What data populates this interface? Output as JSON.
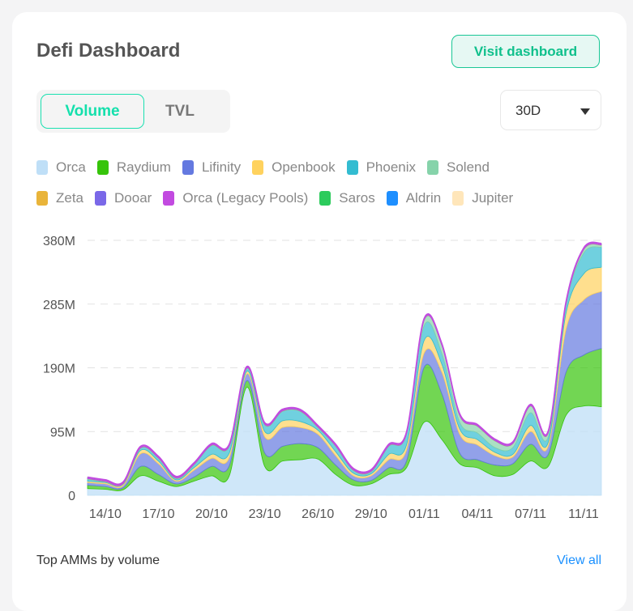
{
  "header": {
    "title": "Defi Dashboard",
    "visit_label": "Visit dashboard"
  },
  "toggle": {
    "options": [
      "Volume",
      "TVL"
    ],
    "selected": "Volume"
  },
  "range_select": {
    "value": "30D"
  },
  "legend": [
    {
      "label": "Orca",
      "color": "#bfdff7"
    },
    {
      "label": "Raydium",
      "color": "#36c40a"
    },
    {
      "label": "Lifinity",
      "color": "#6479e0"
    },
    {
      "label": "Openbook",
      "color": "#ffd25e"
    },
    {
      "label": "Phoenix",
      "color": "#33bcd1"
    },
    {
      "label": "Solend",
      "color": "#86d3aa"
    },
    {
      "label": "Zeta",
      "color": "#e9b43a"
    },
    {
      "label": "Dooar",
      "color": "#7a68e8"
    },
    {
      "label": "Orca (Legacy Pools)",
      "color": "#c24ae0"
    },
    {
      "label": "Saros",
      "color": "#2ccb5c"
    },
    {
      "label": "Aldrin",
      "color": "#1e8fff"
    },
    {
      "label": "Jupiter",
      "color": "#ffe6ba"
    }
  ],
  "chart_data": {
    "type": "area",
    "stacked": true,
    "grid": "horizontal-dashed",
    "ylim": [
      0,
      380
    ],
    "yunit": "M",
    "yticks": [
      "0",
      "95M",
      "190M",
      "285M",
      "380M"
    ],
    "x": [
      "13/10",
      "14/10",
      "15/10",
      "16/10",
      "17/10",
      "18/10",
      "19/10",
      "20/10",
      "21/10",
      "22/10",
      "23/10",
      "24/10",
      "25/10",
      "26/10",
      "27/10",
      "28/10",
      "29/10",
      "30/10",
      "31/10",
      "01/11",
      "02/11",
      "03/11",
      "04/11",
      "05/11",
      "06/11",
      "07/11",
      "08/11",
      "09/11",
      "10/11",
      "11/11"
    ],
    "xticks": [
      "14/10",
      "17/10",
      "20/10",
      "23/10",
      "26/10",
      "29/10",
      "01/11",
      "04/11",
      "07/11",
      "11/11"
    ],
    "series": [
      {
        "name": "Orca",
        "values": [
          10,
          9,
          8,
          29,
          21,
          13,
          21,
          29,
          29,
          161,
          43,
          51,
          53,
          54,
          31,
          15,
          17,
          31,
          41,
          109,
          83,
          47,
          41,
          29,
          31,
          51,
          43,
          119,
          133,
          132
        ]
      },
      {
        "name": "Raydium",
        "values": [
          5,
          4,
          3,
          14,
          10,
          4,
          6,
          14,
          15,
          10,
          20,
          22,
          24,
          17,
          14,
          8,
          5,
          10,
          10,
          82,
          68,
          16,
          12,
          16,
          16,
          25,
          18,
          64,
          76,
          87
        ]
      },
      {
        "name": "Lifinity",
        "values": [
          4,
          4,
          3,
          19,
          16,
          4,
          10,
          12,
          12,
          10,
          24,
          28,
          24,
          20,
          14,
          6,
          7,
          12,
          16,
          21,
          32,
          28,
          22,
          14,
          10,
          19,
          12,
          64,
          82,
          85
        ]
      },
      {
        "name": "Openbook",
        "values": [
          2,
          2,
          2,
          5,
          4,
          2,
          4,
          6,
          7,
          4,
          8,
          10,
          9,
          6,
          6,
          4,
          3,
          8,
          8,
          19,
          12,
          8,
          8,
          5,
          4,
          9,
          6,
          24,
          39,
          36
        ]
      },
      {
        "name": "Phoenix",
        "values": [
          3,
          1,
          0.5,
          3,
          4,
          2,
          4,
          13,
          10,
          4,
          10,
          14,
          15,
          4,
          8,
          4,
          3,
          12,
          16,
          22,
          16,
          10,
          10,
          7,
          10,
          19,
          8,
          12,
          31,
          30
        ]
      },
      {
        "name": "Solend",
        "values": [
          0.5,
          0.5,
          0.5,
          0.5,
          0.5,
          0.5,
          0.5,
          0.5,
          0.5,
          0.5,
          0.5,
          0.5,
          0.5,
          0.5,
          0.5,
          0.5,
          0.5,
          0.5,
          0.5,
          8,
          12,
          10,
          10,
          10,
          6,
          10,
          6,
          2,
          5,
          3
        ]
      },
      {
        "name": "Zeta",
        "values": [
          0.3,
          0.3,
          0.3,
          0.3,
          0.3,
          0.3,
          0.3,
          0.3,
          0.3,
          0.3,
          0.3,
          0.3,
          0.3,
          0.3,
          0.3,
          0.3,
          0.3,
          0.3,
          0.3,
          0.3,
          0.3,
          0.3,
          0.3,
          0.3,
          0.3,
          0.3,
          0.3,
          0.3,
          0.3,
          0.3
        ]
      },
      {
        "name": "Dooar",
        "values": [
          0.3,
          0.3,
          0.3,
          0.3,
          0.3,
          0.3,
          0.3,
          0.3,
          0.3,
          0.3,
          0.3,
          0.3,
          0.3,
          0.3,
          0.3,
          0.3,
          0.3,
          0.3,
          0.3,
          0.3,
          0.3,
          0.3,
          0.3,
          0.3,
          0.3,
          0.3,
          0.3,
          0.3,
          0.3,
          0.3
        ]
      },
      {
        "name": "Orca (Legacy Pools)",
        "values": [
          1.5,
          1.5,
          1.5,
          1.5,
          1.5,
          1.5,
          1.5,
          1.5,
          1.5,
          1.5,
          1.5,
          1.5,
          1.5,
          1.5,
          1.5,
          1.5,
          1.5,
          1.5,
          1.5,
          1.5,
          1.5,
          1.5,
          1.5,
          1.5,
          1.5,
          1.5,
          1.5,
          1.5,
          1.5,
          1.5
        ]
      },
      {
        "name": "Saros",
        "values": [
          0.2,
          0.2,
          0.2,
          0.2,
          0.2,
          0.2,
          0.2,
          0.2,
          0.2,
          0.2,
          0.2,
          0.2,
          0.2,
          0.2,
          0.2,
          0.2,
          0.2,
          0.2,
          0.2,
          0.2,
          0.2,
          0.2,
          0.2,
          0.2,
          0.2,
          0.2,
          0.2,
          0.2,
          0.2,
          0.2
        ]
      },
      {
        "name": "Aldrin",
        "values": [
          0.1,
          0.1,
          0.1,
          0.1,
          0.1,
          0.1,
          0.1,
          0.1,
          0.1,
          0.1,
          0.1,
          0.1,
          0.1,
          0.1,
          0.1,
          0.1,
          0.1,
          0.1,
          0.1,
          0.1,
          0.1,
          0.1,
          0.1,
          0.1,
          0.1,
          0.1,
          0.1,
          0.1,
          0.1,
          0.1
        ]
      },
      {
        "name": "Jupiter",
        "values": [
          0.1,
          0.1,
          0.1,
          0.1,
          0.1,
          0.1,
          0.1,
          0.1,
          0.1,
          0.1,
          0.1,
          0.1,
          0.1,
          0.1,
          0.1,
          0.1,
          0.1,
          0.1,
          0.1,
          0.1,
          0.1,
          0.1,
          0.1,
          0.1,
          0.1,
          0.1,
          0.1,
          0.1,
          0.1,
          0.1
        ]
      }
    ]
  },
  "footer": {
    "label": "Top AMMs by volume",
    "view_all": "View all"
  }
}
